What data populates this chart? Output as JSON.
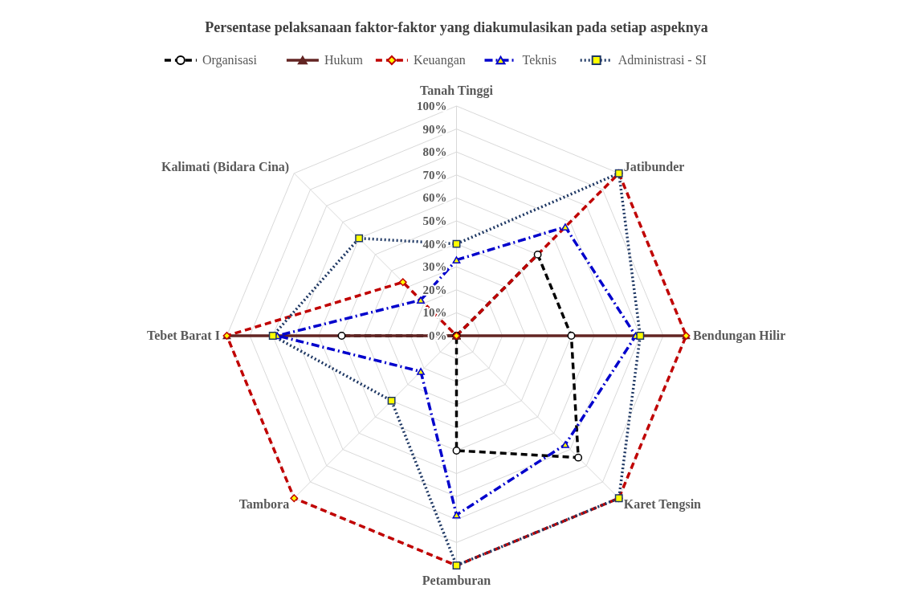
{
  "chart_data": {
    "type": "radar",
    "title": "Persentase pelaksanaan faktor-faktor yang diakumulasikan pada setiap aspeknya",
    "categories": [
      "Tanah Tinggi",
      "Jatibunder",
      "Bendungan Hilir",
      "Karet Tengsin",
      "Petamburan",
      "Tambora",
      "Tebet Barat I",
      "Kalimati (Bidara Cina)"
    ],
    "ylim": [
      0,
      100
    ],
    "yticks": [
      {
        "value": 0,
        "label": "0%"
      },
      {
        "value": 10,
        "label": "10%"
      },
      {
        "value": 20,
        "label": "20%"
      },
      {
        "value": 30,
        "label": "30%"
      },
      {
        "value": 40,
        "label": "40%"
      },
      {
        "value": 50,
        "label": "50%"
      },
      {
        "value": 60,
        "label": "60%"
      },
      {
        "value": 70,
        "label": "70%"
      },
      {
        "value": 80,
        "label": "80%"
      },
      {
        "value": 90,
        "label": "90%"
      },
      {
        "value": 100,
        "label": "100%"
      }
    ],
    "grid": true,
    "legend": "top",
    "series": [
      {
        "name": "Organisasi",
        "color": "#000000",
        "marker": "circle",
        "line_style": "dashed",
        "values": [
          0,
          50,
          50,
          75,
          50,
          0,
          50,
          0
        ]
      },
      {
        "name": "Hukum",
        "color": "#632523",
        "marker": "triangle",
        "line_style": "solid",
        "values": [
          0,
          0,
          100,
          0,
          0,
          0,
          100,
          0
        ]
      },
      {
        "name": "Keuangan",
        "color": "#c00000",
        "marker": "diamond",
        "line_style": "dashed",
        "values": [
          0,
          100,
          100,
          100,
          100,
          100,
          100,
          33
        ]
      },
      {
        "name": "Teknis",
        "color": "#0000cc",
        "marker": "triangle",
        "line_style": "dashdot",
        "values": [
          33,
          67,
          78,
          67,
          78,
          22,
          78,
          22
        ]
      },
      {
        "name": "Administrasi - SI",
        "color": "#1f3864",
        "marker": "square",
        "line_style": "dotted",
        "values": [
          40,
          100,
          80,
          100,
          100,
          40,
          80,
          60
        ]
      }
    ]
  }
}
